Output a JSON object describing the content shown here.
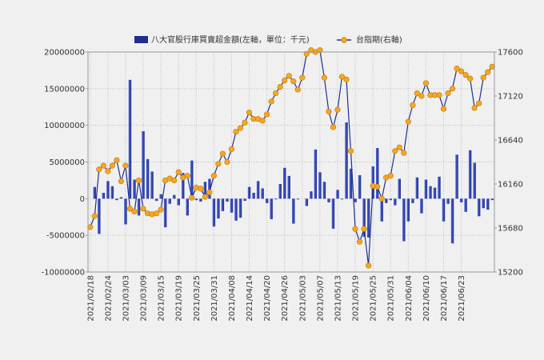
{
  "chart_data": {
    "type": "bar+line",
    "title": "",
    "legend": {
      "placement": "top",
      "bar_label": "八大官股行庫買賣超金額(左軸，單位：千元)",
      "line_label": "台指期(右軸)"
    },
    "x_tick_labels": [
      "2021/02/18",
      "2021/02/24",
      "2021/03/03",
      "2021/03/09",
      "2021/03/15",
      "2021/03/19",
      "2021/03/25",
      "2021/03/31",
      "2021/04/08",
      "2021/04/14",
      "2021/04/20",
      "2021/04/26",
      "2021/05/03",
      "2021/05/07",
      "2021/05/13",
      "2021/05/19",
      "2021/05/25",
      "2021/05/31",
      "2021/06/04",
      "2021/06/10",
      "2021/06/17",
      "2021/06/23"
    ],
    "x_tick_every": 4,
    "left_axis": {
      "min": -10000000,
      "max": 20000000,
      "step": 5000000,
      "tick_labels": [
        "-10000000",
        "-5000000",
        "0",
        "5000000",
        "10000000",
        "15000000",
        "20000000"
      ]
    },
    "right_axis": {
      "min": 15200,
      "max": 17600,
      "step": 480,
      "tick_labels": [
        "15200",
        "15680",
        "16160",
        "16640",
        "17120",
        "17600"
      ]
    },
    "series": [
      {
        "name": "八大官股行庫買賣超金額(左軸，單位：千元)",
        "axis": "left",
        "type": "bar",
        "values": [
          0,
          1600000,
          -4800000,
          800000,
          2400000,
          1700000,
          -200000,
          200000,
          -3500000,
          16200000,
          2600000,
          -2300000,
          9200000,
          5400000,
          3700000,
          -300000,
          600000,
          -3900000,
          -700000,
          500000,
          -900000,
          3500000,
          -2300000,
          5200000,
          -200000,
          -400000,
          2300000,
          2700000,
          -3800000,
          -2700000,
          -1700000,
          -400000,
          -1900000,
          -3000000,
          -2600000,
          -300000,
          1600000,
          800000,
          2400000,
          1400000,
          -600000,
          -2800000,
          -100000,
          2000000,
          4200000,
          3100000,
          -3400000,
          -100000,
          0,
          -1000000,
          1000000,
          6700000,
          3600000,
          2300000,
          -500000,
          -4100000,
          1200000,
          -100000,
          10400000,
          4100000,
          -500000,
          3200000,
          -5200000,
          -5300000,
          4400000,
          6900000,
          -3100000,
          -600000,
          -200000,
          -900000,
          2700000,
          -5800000,
          -3100000,
          -600000,
          2900000,
          -2000000,
          2600000,
          1700000,
          1500000,
          3000000,
          -3100000,
          -700000,
          -6100000,
          6000000,
          -500000,
          -1800000,
          6600000,
          4900000,
          -2400000,
          -1300000,
          -1500000,
          -200000
        ],
        "color": "#1f2f8e"
      },
      {
        "name": "台指期(右軸)",
        "axis": "right",
        "type": "line",
        "values": [
          15690,
          15810,
          16320,
          16360,
          16300,
          16360,
          16420,
          16190,
          16360,
          15890,
          15860,
          16200,
          15890,
          15840,
          15830,
          15840,
          15880,
          16200,
          16220,
          16200,
          16290,
          16230,
          16250,
          16010,
          16120,
          16110,
          16020,
          16070,
          16250,
          16380,
          16490,
          16400,
          16540,
          16730,
          16770,
          16830,
          16940,
          16870,
          16870,
          16850,
          16920,
          17060,
          17150,
          17220,
          17290,
          17340,
          17280,
          17190,
          17320,
          17580,
          17620,
          17600,
          17620,
          17320,
          16950,
          16780,
          16970,
          17330,
          17300,
          16520,
          15670,
          15530,
          15670,
          15270,
          16140,
          16130,
          16000,
          16230,
          16250,
          16520,
          16560,
          16500,
          16840,
          17020,
          17150,
          17120,
          17260,
          17130,
          17130,
          17130,
          16980,
          17150,
          17200,
          17420,
          17390,
          17350,
          17310,
          16990,
          17040,
          17320,
          17380,
          17440
        ],
        "color": "#1f2f8e",
        "marker_color": "#f5a623"
      }
    ],
    "grid": true
  }
}
